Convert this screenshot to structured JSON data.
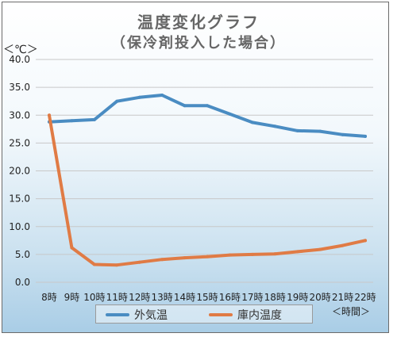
{
  "chart_data": {
    "type": "line",
    "title": "温度変化グラフ",
    "subtitle": "（保冷剤投入した場合）",
    "ylabel": "＜℃＞",
    "xlabel": "＜時間＞",
    "ylim": [
      0,
      40
    ],
    "yticks": [
      "0.0",
      "5.0",
      "10.0",
      "15.0",
      "20.0",
      "25.0",
      "30.0",
      "35.0",
      "40.0"
    ],
    "categories": [
      "8時",
      "9時",
      "10時",
      "11時",
      "12時",
      "13時",
      "14時",
      "15時",
      "16時",
      "17時",
      "18時",
      "19時",
      "20時",
      "21時",
      "22時"
    ],
    "grid": true,
    "legend_position": "bottom",
    "series": [
      {
        "name": "外気温",
        "color": "#4a8cc2",
        "values": [
          28.8,
          29.0,
          29.2,
          32.5,
          33.2,
          33.6,
          31.7,
          31.7,
          30.2,
          28.7,
          28.0,
          27.2,
          27.1,
          26.5,
          26.2
        ]
      },
      {
        "name": "庫内温度",
        "color": "#e07b45",
        "values": [
          30.0,
          6.2,
          3.2,
          3.1,
          3.6,
          4.1,
          4.4,
          4.6,
          4.9,
          5.0,
          5.1,
          5.5,
          5.9,
          6.6,
          7.5
        ]
      }
    ]
  }
}
